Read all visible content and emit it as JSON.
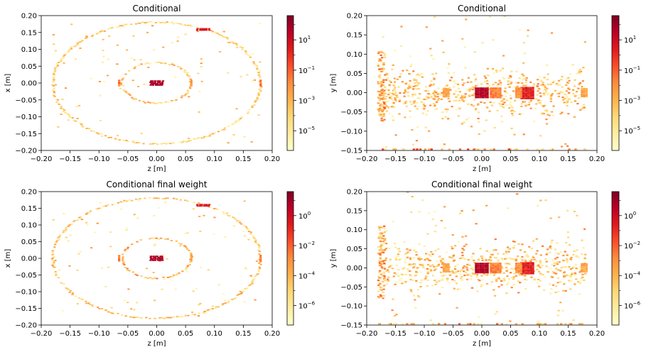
{
  "colormap": [
    "#ffffcc",
    "#ffeda0",
    "#fed976",
    "#feb24c",
    "#fd8d3c",
    "#fc4e2a",
    "#e31a1c",
    "#bd0026",
    "#800026"
  ],
  "chart_data": [
    {
      "type": "heatmap",
      "title": "Conditional",
      "xlabel": "z [m]",
      "ylabel": "x [m]",
      "xlim": [
        -0.2,
        0.2
      ],
      "ylim": [
        -0.2,
        0.2
      ],
      "xticks": [
        "−0.20",
        "−0.15",
        "−0.10",
        "−0.05",
        "0.00",
        "0.05",
        "0.10",
        "0.15",
        "0.20"
      ],
      "yticks": [
        "−0.20",
        "−0.15",
        "−0.10",
        "−0.05",
        "0.00",
        "0.05",
        "0.10",
        "0.15",
        "0.20"
      ],
      "color_scale": "log",
      "colorbar_exponents": [
        -5,
        -3,
        -1,
        1
      ],
      "colorbar_range_exp": [
        -6.3,
        2.6
      ],
      "colorbar_labels": [
        {
          "base": "10",
          "exp": "−5"
        },
        {
          "base": "10",
          "exp": "−3"
        },
        {
          "base": "10",
          "exp": "−1"
        },
        {
          "base": "10",
          "exp": "1"
        }
      ],
      "structures": {
        "rings": [
          {
            "cx": 0.0,
            "cy": 0.0,
            "r": 0.18,
            "level": 0.25
          },
          {
            "cx": 0.0,
            "cy": 0.0,
            "r": 0.06,
            "level": 0.3
          }
        ],
        "hotspots": [
          {
            "x": 0.0,
            "y": 0.0,
            "w": 0.02,
            "h": 0.012,
            "level": 0.97
          },
          {
            "x": 0.082,
            "y": 0.16,
            "w": 0.022,
            "h": 0.006,
            "level": 0.85
          }
        ],
        "ring_highlights": [
          {
            "x": 0.18,
            "y": 0.0,
            "level": 0.55
          },
          {
            "x": -0.065,
            "y": 0.0,
            "level": 0.55
          },
          {
            "x": 0.06,
            "y": 0.0,
            "level": 0.45
          }
        ]
      }
    },
    {
      "type": "heatmap",
      "title": "Conditional",
      "xlabel": "z [m]",
      "ylabel": "y [m]",
      "xlim": [
        -0.2,
        0.2
      ],
      "ylim": [
        -0.15,
        0.2
      ],
      "xticks": [
        "−0.20",
        "−0.15",
        "−0.10",
        "−0.05",
        "0.00",
        "0.05",
        "0.10",
        "0.15",
        "0.20"
      ],
      "yticks": [
        "−0.15",
        "−0.10",
        "−0.05",
        "0.00",
        "0.05",
        "0.10",
        "0.15",
        "0.20"
      ],
      "color_scale": "log",
      "colorbar_exponents": [
        -5,
        -3,
        -1,
        1
      ],
      "colorbar_range_exp": [
        -6.3,
        2.6
      ],
      "colorbar_labels": [
        {
          "base": "10",
          "exp": "−5"
        },
        {
          "base": "10",
          "exp": "−3"
        },
        {
          "base": "10",
          "exp": "−1"
        },
        {
          "base": "10",
          "exp": "1"
        }
      ],
      "structures": {
        "bands": [
          {
            "x": 0.0,
            "y": 0.0,
            "w": 0.02,
            "h": 0.025,
            "level": 0.96
          },
          {
            "x": 0.08,
            "y": 0.0,
            "w": 0.022,
            "h": 0.03,
            "level": 0.82
          },
          {
            "x": 0.025,
            "y": 0.0,
            "w": 0.018,
            "h": 0.025,
            "level": 0.6
          },
          {
            "x": 0.065,
            "y": 0.0,
            "w": 0.01,
            "h": 0.025,
            "level": 0.55
          },
          {
            "x": -0.062,
            "y": 0.0,
            "w": 0.008,
            "h": 0.02,
            "level": 0.5
          },
          {
            "x": 0.178,
            "y": 0.0,
            "w": 0.008,
            "h": 0.02,
            "level": 0.5
          }
        ],
        "scatter_x": [
          -0.18,
          0.18
        ],
        "scatter_y": [
          -0.15,
          0.2
        ]
      }
    },
    {
      "type": "heatmap",
      "title": "Conditional final weight",
      "xlabel": "z [m]",
      "ylabel": "x [m]",
      "xlim": [
        -0.2,
        0.2
      ],
      "ylim": [
        -0.2,
        0.2
      ],
      "xticks": [
        "−0.20",
        "−0.15",
        "−0.10",
        "−0.05",
        "0.00",
        "0.05",
        "0.10",
        "0.15",
        "0.20"
      ],
      "yticks": [
        "−0.20",
        "−0.15",
        "−0.10",
        "−0.05",
        "0.00",
        "0.05",
        "0.10",
        "0.15",
        "0.20"
      ],
      "color_scale": "log",
      "colorbar_exponents": [
        -6,
        -4,
        -2,
        0
      ],
      "colorbar_range_exp": [
        -7.3,
        1.6
      ],
      "colorbar_labels": [
        {
          "base": "10",
          "exp": "−6"
        },
        {
          "base": "10",
          "exp": "−4"
        },
        {
          "base": "10",
          "exp": "−2"
        },
        {
          "base": "10",
          "exp": "0"
        }
      ],
      "structures": {
        "rings": [
          {
            "cx": 0.0,
            "cy": 0.0,
            "r": 0.18,
            "level": 0.3
          },
          {
            "cx": 0.0,
            "cy": 0.0,
            "r": 0.06,
            "level": 0.38
          }
        ],
        "hotspots": [
          {
            "x": 0.0,
            "y": 0.0,
            "w": 0.02,
            "h": 0.012,
            "level": 0.97
          },
          {
            "x": 0.082,
            "y": 0.16,
            "w": 0.022,
            "h": 0.006,
            "level": 0.85
          }
        ],
        "ring_highlights": [
          {
            "x": 0.18,
            "y": 0.0,
            "level": 0.55
          },
          {
            "x": -0.065,
            "y": 0.0,
            "level": 0.55
          },
          {
            "x": 0.06,
            "y": 0.0,
            "level": 0.45
          }
        ]
      }
    },
    {
      "type": "heatmap",
      "title": "Conditional final weight",
      "xlabel": "z [m]",
      "ylabel": "y [m]",
      "xlim": [
        -0.2,
        0.2
      ],
      "ylim": [
        -0.15,
        0.2
      ],
      "xticks": [
        "−0.20",
        "−0.15",
        "−0.10",
        "−0.05",
        "0.00",
        "0.05",
        "0.10",
        "0.15",
        "0.20"
      ],
      "yticks": [
        "−0.15",
        "−0.10",
        "−0.05",
        "0.00",
        "0.05",
        "0.10",
        "0.15",
        "0.20"
      ],
      "color_scale": "log",
      "colorbar_exponents": [
        -6,
        -4,
        -2,
        0
      ],
      "colorbar_range_exp": [
        -7.3,
        1.6
      ],
      "colorbar_labels": [
        {
          "base": "10",
          "exp": "−6"
        },
        {
          "base": "10",
          "exp": "−4"
        },
        {
          "base": "10",
          "exp": "−2"
        },
        {
          "base": "10",
          "exp": "0"
        }
      ],
      "structures": {
        "bands": [
          {
            "x": 0.0,
            "y": 0.0,
            "w": 0.02,
            "h": 0.025,
            "level": 0.96
          },
          {
            "x": 0.08,
            "y": 0.0,
            "w": 0.022,
            "h": 0.03,
            "level": 0.82
          },
          {
            "x": 0.025,
            "y": 0.0,
            "w": 0.018,
            "h": 0.025,
            "level": 0.6
          },
          {
            "x": 0.065,
            "y": 0.0,
            "w": 0.01,
            "h": 0.025,
            "level": 0.55
          },
          {
            "x": -0.062,
            "y": 0.0,
            "w": 0.008,
            "h": 0.02,
            "level": 0.5
          },
          {
            "x": 0.178,
            "y": 0.0,
            "w": 0.008,
            "h": 0.02,
            "level": 0.5
          }
        ],
        "scatter_x": [
          -0.18,
          0.18
        ],
        "scatter_y": [
          -0.15,
          0.2
        ]
      }
    }
  ]
}
